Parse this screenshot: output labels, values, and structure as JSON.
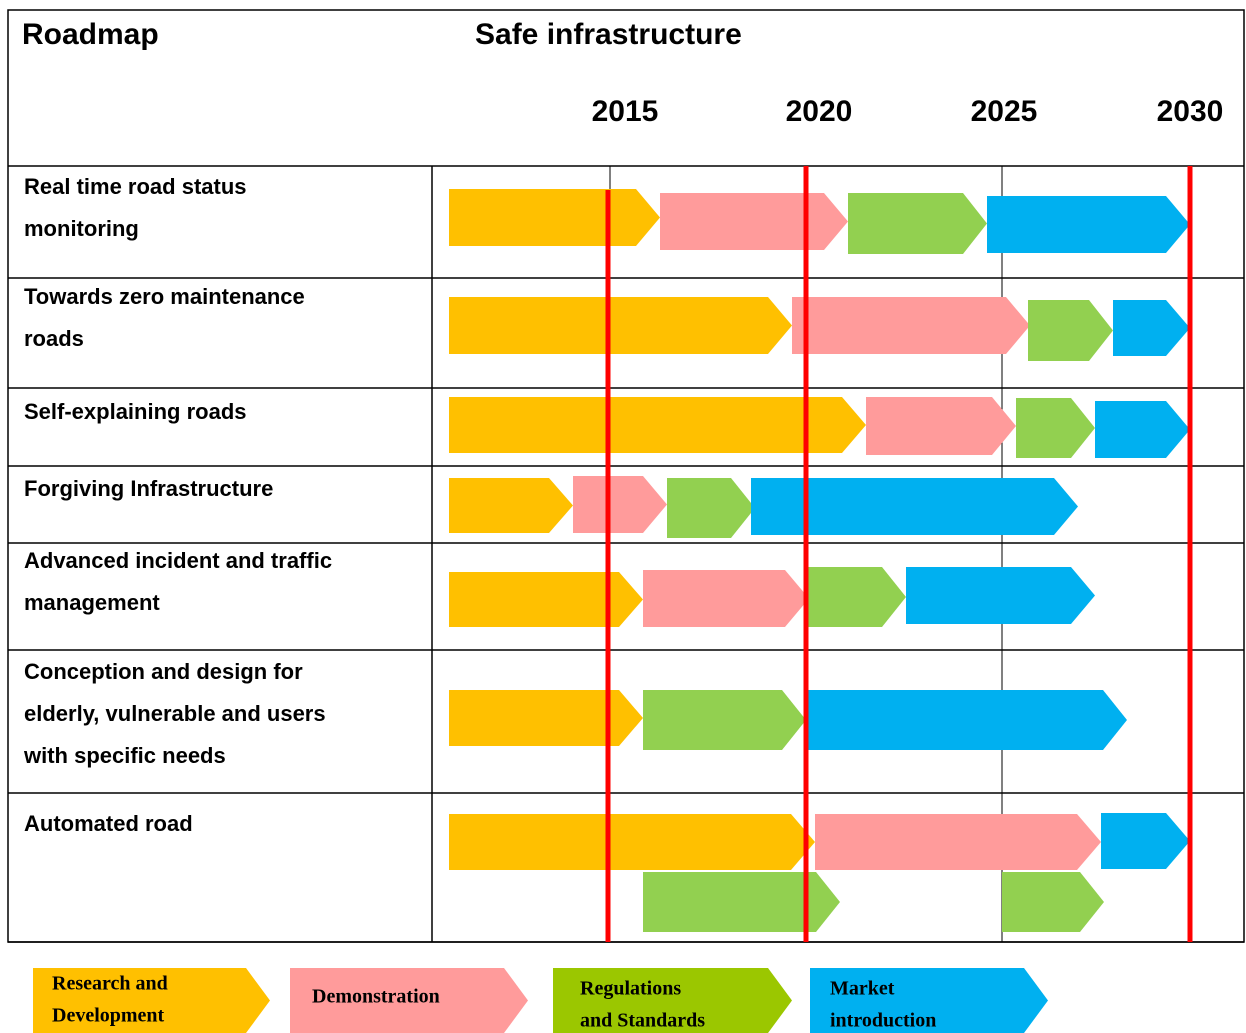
{
  "header": {
    "title": "Roadmap",
    "subtitle": "Safe infrastructure"
  },
  "years": [
    "2015",
    "2020",
    "2025",
    "2030"
  ],
  "rows": [
    {
      "label": [
        "Real time road status",
        "monitoring"
      ]
    },
    {
      "label": [
        "Towards zero maintenance",
        "roads"
      ]
    },
    {
      "label": [
        "Self-explaining roads"
      ]
    },
    {
      "label": [
        "Forgiving Infrastructure"
      ]
    },
    {
      "label": [
        "Advanced  incident and traffic",
        "management"
      ]
    },
    {
      "label": [
        "Conception and design for",
        "elderly, vulnerable and users",
        "with specific needs"
      ]
    },
    {
      "label": [
        "Automated road"
      ]
    }
  ],
  "legend": [
    {
      "label": [
        "Research and",
        "Development"
      ]
    },
    {
      "label": [
        "Demonstration"
      ]
    },
    {
      "label": [
        "Regulations",
        "and Standards"
      ]
    },
    {
      "label": [
        "Market",
        "introduction"
      ]
    }
  ]
}
